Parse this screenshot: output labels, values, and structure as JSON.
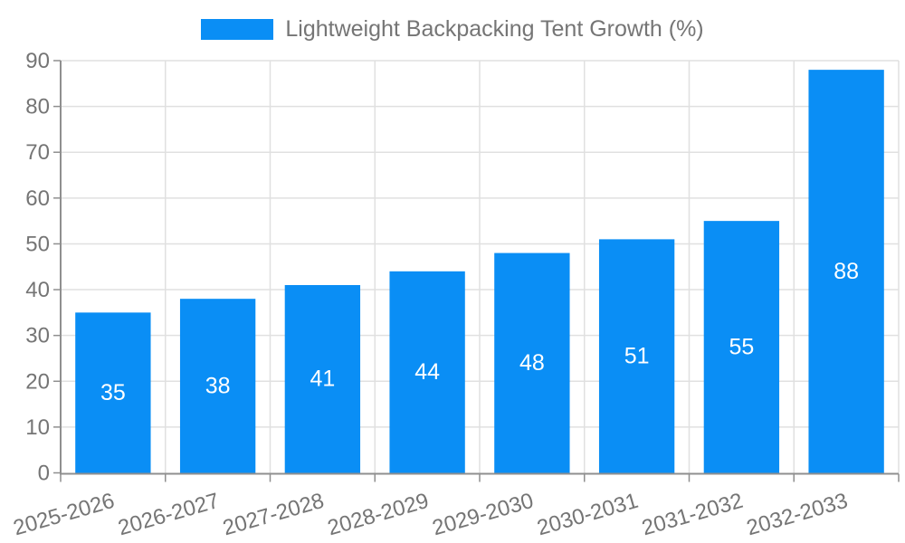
{
  "chart_data": {
    "type": "bar",
    "title": "Lightweight Backpacking Tent Growth (%)",
    "series_name": "Lightweight Backpacking Tent Growth (%)",
    "categories": [
      "2025-2026",
      "2026-2027",
      "2027-2028",
      "2028-2029",
      "2029-2030",
      "2030-2031",
      "2031-2032",
      "2032-2033"
    ],
    "values": [
      35,
      38,
      41,
      44,
      48,
      51,
      55,
      88
    ],
    "xlabel": "",
    "ylabel": "",
    "ylim": [
      0,
      90
    ],
    "ytick_interval": 10,
    "yticks": [
      0,
      10,
      20,
      30,
      40,
      50,
      60,
      70,
      80,
      90
    ],
    "grid": true,
    "legend_position": "top-center",
    "x_label_rotation": -16,
    "bar_color": "#0a8ef5",
    "value_label_color": "#ffffff",
    "axis_text_color": "#757575",
    "axis_line_color": "#8f8f8f",
    "grid_color": "#e0e0e0"
  }
}
